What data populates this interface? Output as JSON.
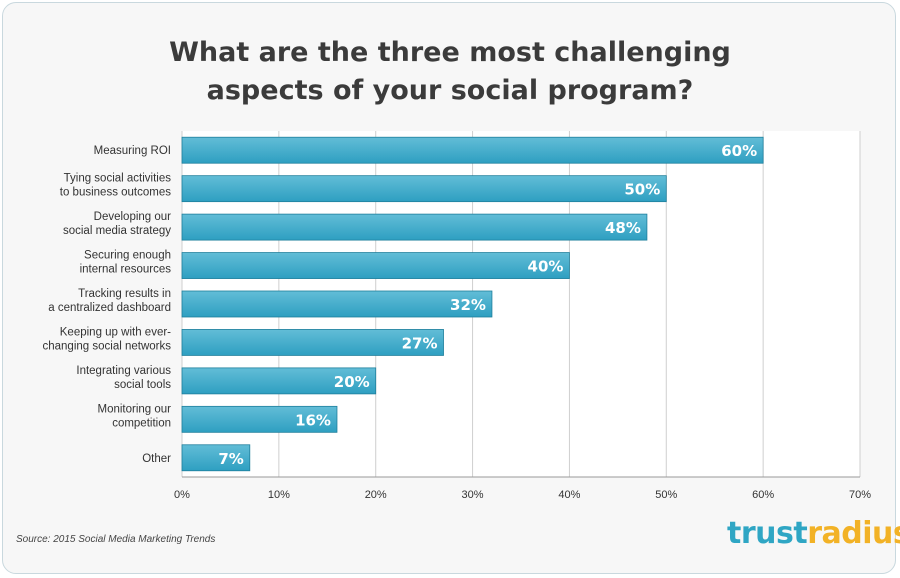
{
  "title_line1": "What are the three most challenging",
  "title_line2": "aspects of your social program?",
  "source": "Source: 2015 Social Media Marketing Trends",
  "logo": {
    "part1": "trust",
    "part2": "radius",
    "tm": "™"
  },
  "colors": {
    "bar": "#2e9fc1",
    "bar_light": "#62bdd7",
    "bar_border": "#1f7f9c",
    "grid": "#cfcfcf",
    "text": "#333333"
  },
  "chart_data": {
    "type": "bar",
    "orientation": "horizontal",
    "title": "What are the three most challenging aspects of your social program?",
    "categories": [
      [
        "Measuring ROI"
      ],
      [
        "Tying social activities",
        "to business outcomes"
      ],
      [
        "Developing our",
        "social media strategy"
      ],
      [
        "Securing enough",
        "internal resources"
      ],
      [
        "Tracking results in",
        "a centralized dashboard"
      ],
      [
        "Keeping up with ever-",
        "changing social networks"
      ],
      [
        "Integrating various",
        "social tools"
      ],
      [
        "Monitoring our",
        "competition"
      ],
      [
        "Other"
      ]
    ],
    "values": [
      60,
      50,
      48,
      40,
      32,
      27,
      20,
      16,
      7
    ],
    "value_labels": [
      "60%",
      "50%",
      "48%",
      "40%",
      "32%",
      "27%",
      "20%",
      "16%",
      "7%"
    ],
    "xlim": [
      0,
      70
    ],
    "xticks": [
      0,
      10,
      20,
      30,
      40,
      50,
      60,
      70
    ],
    "xtick_labels": [
      "0%",
      "10%",
      "20%",
      "30%",
      "40%",
      "50%",
      "60%",
      "70%"
    ],
    "grid": true
  }
}
